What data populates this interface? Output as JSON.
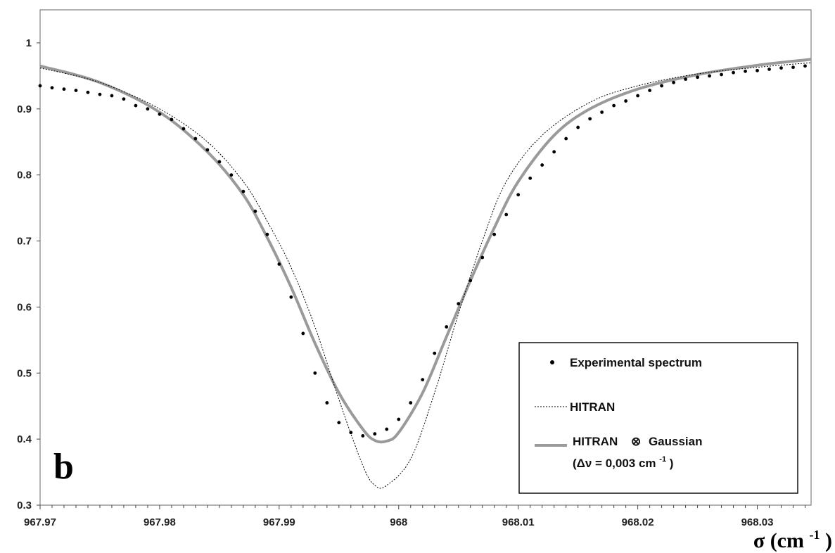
{
  "chart_data": {
    "type": "line",
    "panel_label": "b",
    "xlabel": "σ (cm",
    "xlabel_sup": "-1",
    "xlabel_close": ")",
    "xlim": [
      967.97,
      968.0345
    ],
    "ylim": [
      0.3,
      1.05
    ],
    "x_ticks": [
      967.97,
      967.98,
      967.99,
      968,
      968.01,
      968.02,
      968.03
    ],
    "x_tick_labels": [
      "967.97",
      "967.98",
      "967.99",
      "968",
      "968.01",
      "968.02",
      "968.03"
    ],
    "y_ticks": [
      0.3,
      0.4,
      0.5,
      0.6,
      0.7,
      0.8,
      0.9,
      1
    ],
    "y_tick_labels": [
      "0.3",
      "0.4",
      "0.5",
      "0.6",
      "0.7",
      "0.8",
      "0.9",
      "1"
    ],
    "grid": false,
    "legend_position": "bottom-right",
    "legend": {
      "experimental": "Experimental spectrum",
      "hitran": "HITRAN",
      "convolved_line1_a": "HITRAN",
      "convolved_symbol": "⊗",
      "convolved_line1_b": "Gaussian",
      "convolved_line2_a": "(Δν = 0,003 cm",
      "convolved_line2_sup": "-1",
      "convolved_line2_b": ")"
    },
    "series": [
      {
        "name": "HITRAN",
        "style": "dotted",
        "color": "#000000",
        "x": [
          967.97,
          967.975,
          967.98,
          967.984,
          967.987,
          967.989,
          967.991,
          967.993,
          967.995,
          967.997,
          967.998,
          967.999,
          968.001,
          968.003,
          968.005,
          968.007,
          968.009,
          968.012,
          968.016,
          968.02,
          968.025,
          968.03,
          968.0345
        ],
        "y": [
          0.962,
          0.94,
          0.9,
          0.85,
          0.79,
          0.73,
          0.66,
          0.57,
          0.46,
          0.36,
          0.33,
          0.33,
          0.37,
          0.47,
          0.59,
          0.7,
          0.79,
          0.86,
          0.91,
          0.935,
          0.953,
          0.963,
          0.97
        ]
      },
      {
        "name": "HITRAN ⊗ Gaussian",
        "style": "solid",
        "color": "#9a9a9a",
        "x": [
          967.97,
          967.975,
          967.98,
          967.984,
          967.987,
          967.989,
          967.991,
          967.993,
          967.995,
          967.997,
          967.998,
          967.999,
          968,
          968.002,
          968.004,
          968.006,
          968.008,
          968.01,
          968.013,
          968.016,
          968.02,
          968.025,
          968.03,
          968.0345
        ],
        "y": [
          0.965,
          0.94,
          0.895,
          0.835,
          0.77,
          0.705,
          0.63,
          0.545,
          0.47,
          0.415,
          0.398,
          0.397,
          0.41,
          0.47,
          0.555,
          0.64,
          0.72,
          0.79,
          0.86,
          0.9,
          0.93,
          0.952,
          0.966,
          0.975
        ]
      },
      {
        "name": "Experimental spectrum",
        "style": "dots",
        "color": "#000000",
        "x": [
          967.97,
          967.971,
          967.972,
          967.973,
          967.974,
          967.975,
          967.976,
          967.977,
          967.978,
          967.979,
          967.98,
          967.981,
          967.982,
          967.983,
          967.984,
          967.985,
          967.986,
          967.987,
          967.988,
          967.989,
          967.99,
          967.991,
          967.992,
          967.993,
          967.994,
          967.995,
          967.996,
          967.997,
          967.998,
          967.999,
          968,
          968.001,
          968.002,
          968.003,
          968.004,
          968.005,
          968.006,
          968.007,
          968.008,
          968.009,
          968.01,
          968.011,
          968.012,
          968.013,
          968.014,
          968.015,
          968.016,
          968.017,
          968.018,
          968.019,
          968.02,
          968.021,
          968.022,
          968.023,
          968.024,
          968.025,
          968.026,
          968.027,
          968.028,
          968.029,
          968.03,
          968.031,
          968.032,
          968.033,
          968.034
        ],
        "y": [
          0.935,
          0.932,
          0.93,
          0.928,
          0.925,
          0.922,
          0.92,
          0.915,
          0.905,
          0.9,
          0.892,
          0.884,
          0.87,
          0.855,
          0.838,
          0.82,
          0.8,
          0.775,
          0.745,
          0.71,
          0.665,
          0.615,
          0.56,
          0.5,
          0.455,
          0.425,
          0.41,
          0.405,
          0.408,
          0.415,
          0.43,
          0.455,
          0.49,
          0.53,
          0.57,
          0.605,
          0.64,
          0.675,
          0.71,
          0.74,
          0.77,
          0.795,
          0.815,
          0.835,
          0.855,
          0.872,
          0.885,
          0.895,
          0.905,
          0.912,
          0.92,
          0.928,
          0.935,
          0.94,
          0.945,
          0.948,
          0.95,
          0.952,
          0.955,
          0.957,
          0.958,
          0.96,
          0.962,
          0.963,
          0.965
        ]
      }
    ]
  }
}
